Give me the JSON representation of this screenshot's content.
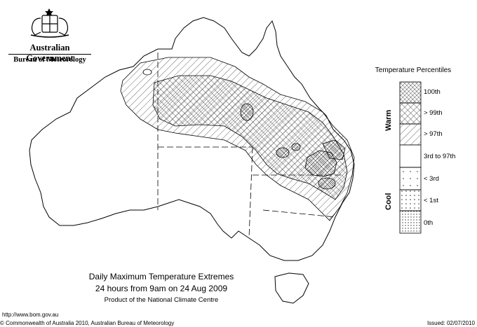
{
  "header": {
    "government": "Australian Government",
    "bureau": "Bureau of Meteorology"
  },
  "legend": {
    "title": "Temperature Percentiles",
    "warm_label": "Warm",
    "cool_label": "Cool",
    "items": [
      {
        "label": "100th",
        "pattern": "crosshatch"
      },
      {
        "label": "> 99th",
        "pattern": "diagonal-dense"
      },
      {
        "label": "> 97th",
        "pattern": "diagonal-sparse"
      },
      {
        "label": "3rd to 97th",
        "pattern": "none"
      },
      {
        "label": "< 3rd",
        "pattern": "dots-sparse"
      },
      {
        "label": "< 1st",
        "pattern": "dots-medium"
      },
      {
        "label": "0th",
        "pattern": "dots-dense"
      }
    ]
  },
  "map": {
    "title": "Daily Maximum Temperature Extremes",
    "subtitle": "24 hours from 9am on 24 Aug 2009",
    "product": "Product of the National Climate Centre"
  },
  "footer": {
    "url": "http://www.bom.gov.au",
    "copyright": "© Commonwealth of Australia 2010, Australian Bureau of Meteorology",
    "issued": "Issued: 02/07/2010"
  }
}
